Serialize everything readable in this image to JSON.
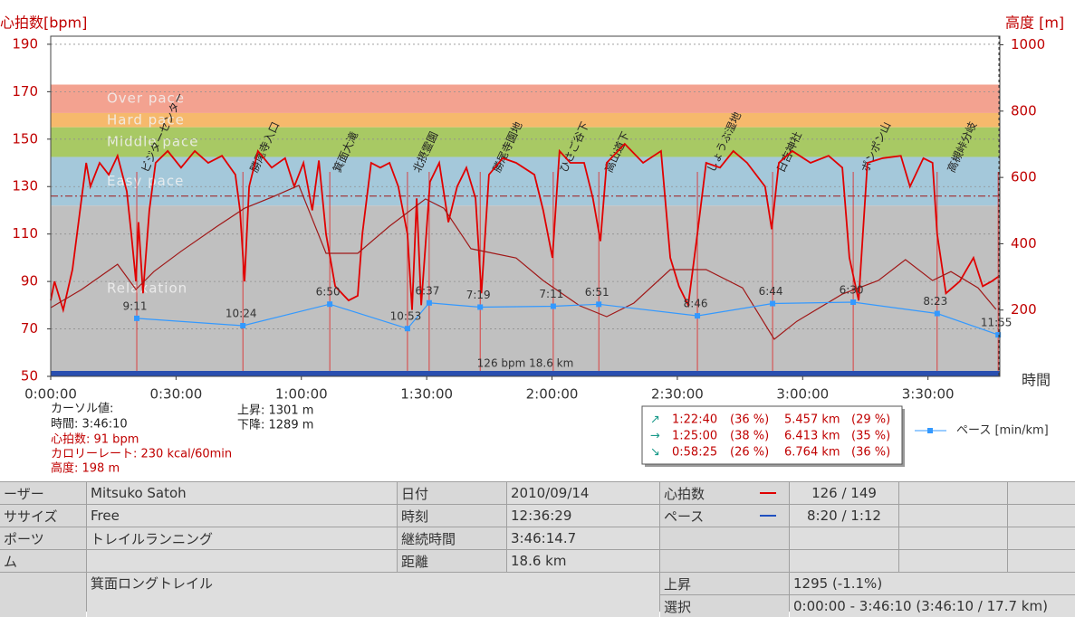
{
  "chart_data": {
    "type": "line",
    "y_label": "心拍数[bpm]",
    "y2_label": "高度 [m]",
    "x_label": "時間",
    "xlim": [
      0,
      227.2
    ],
    "xticks": [
      {
        "value": 0,
        "label": "0:00:00"
      },
      {
        "value": 30,
        "label": "0:30:00"
      },
      {
        "value": 60,
        "label": "1:00:00"
      },
      {
        "value": 90,
        "label": "1:30:00"
      },
      {
        "value": 120,
        "label": "2:00:00"
      },
      {
        "value": 150,
        "label": "2:30:00"
      },
      {
        "value": 180,
        "label": "3:00:00"
      },
      {
        "value": 210,
        "label": "3:30:00"
      }
    ],
    "ylim": [
      50,
      193.4
    ],
    "yticks": [
      50,
      70,
      90,
      110,
      130,
      150,
      170,
      190
    ],
    "y2lim": [
      0,
      1026
    ],
    "y2ticks": [
      200,
      400,
      600,
      800,
      1000
    ],
    "y3lim": [
      18.8,
      -37.6
    ],
    "grid": true,
    "zones": [
      {
        "name": "Over pace",
        "range": [
          161,
          173
        ],
        "color": "#f3a290"
      },
      {
        "name": "Hard pace",
        "range": [
          155,
          161
        ],
        "color": "#f6b96c"
      },
      {
        "name": "Middle pace",
        "range": [
          142.5,
          155
        ],
        "color": "#a8c964"
      },
      {
        "name": "Easy pace",
        "range": [
          122,
          142.5
        ],
        "color": "#a4c8da"
      },
      {
        "name": "Relaxation",
        "range": [
          52,
          122
        ],
        "color": "#c0c0c0"
      }
    ],
    "average_line": 126,
    "center_label": "126 bpm 18.6 km",
    "series": [
      {
        "color": "#e00000",
        "axis": "y",
        "x": [
          0,
          0.9,
          3.0,
          5.2,
          7.4,
          8.5,
          9.5,
          11.7,
          13.9,
          16.0,
          18.2,
          19.3,
          20.4,
          21.0,
          22.1,
          23.6,
          25.1,
          28.0,
          31.2,
          34.5,
          37.7,
          41.0,
          44.2,
          45.3,
          46.4,
          47.5,
          49.6,
          52.9,
          56.1,
          58.3,
          60.5,
          62.6,
          64.2,
          65.9,
          68.1,
          71.3,
          73.5,
          74.6,
          76.7,
          78.9,
          81.1,
          83.2,
          85.4,
          86.5,
          87.6,
          88.7,
          90.8,
          93.0,
          95.2,
          97.3,
          99.5,
          101.7,
          103.1,
          104.9,
          108.2,
          111.4,
          115.8,
          117.9,
          120.1,
          121.8,
          124.4,
          127.7,
          129.8,
          131.6,
          133.1,
          137.4,
          141.8,
          146.1,
          148.3,
          150.4,
          152.6,
          154.8,
          156.9,
          160.2,
          163.4,
          166.7,
          171.0,
          172.6,
          174.3,
          177.5,
          181.9,
          186.2,
          189.5,
          191.2,
          193.4,
          195.5,
          199.2,
          203.5,
          205.7,
          208.9,
          211.1,
          212.2,
          214.3,
          217.6,
          220.9,
          223.1,
          225.2,
          226.8
        ],
        "values": [
          82,
          90,
          78,
          95,
          125,
          140,
          130,
          140,
          135,
          143,
          128,
          110,
          90,
          115,
          85,
          120,
          140,
          145,
          138,
          145,
          140,
          143,
          135,
          120,
          90,
          130,
          145,
          138,
          142,
          130,
          140,
          120,
          141,
          110,
          88,
          82,
          84,
          110,
          140,
          138,
          140,
          130,
          110,
          78,
          125,
          80,
          132,
          140,
          115,
          130,
          138,
          125,
          85,
          135,
          142,
          140,
          135,
          120,
          100,
          145,
          140,
          140,
          125,
          107,
          140,
          148,
          140,
          145,
          100,
          88,
          80,
          110,
          140,
          138,
          145,
          140,
          130,
          112,
          140,
          145,
          140,
          143,
          138,
          100,
          82,
          140,
          142,
          143,
          130,
          142,
          140,
          110,
          85,
          90,
          100,
          88,
          90,
          92
        ]
      },
      {
        "color": "#a01818",
        "axis": "y2",
        "x": [
          0,
          7.4,
          16.0,
          20.4,
          24.7,
          31.2,
          39.9,
          46.4,
          52.9,
          59.4,
          65.9,
          73.5,
          81.1,
          89.7,
          94.1,
          100.6,
          111.4,
          117.9,
          126.6,
          133.1,
          139.6,
          148.3,
          156.9,
          165.6,
          173.2,
          178.6,
          189.5,
          198.1,
          204.6,
          211.1,
          215.5,
          222.0,
          226.3
        ],
        "values": [
          207,
          262,
          338,
          262,
          316,
          377,
          453,
          507,
          540,
          576,
          371,
          371,
          453,
          535,
          507,
          385,
          357,
          289,
          213,
          180,
          221,
          322,
          322,
          267,
          112,
          166,
          248,
          289,
          352,
          289,
          316,
          267,
          202
        ]
      },
      {
        "name": "ペース [min/km]",
        "color": "#3399ff",
        "axis": "y3",
        "x": [
          20.6,
          46.0,
          66.8,
          85.4,
          90.6,
          102.8,
          120.3,
          131.2,
          154.8,
          172.8,
          192.1,
          212.2,
          226.8
        ],
        "values": [
          9.18,
          10.4,
          6.83,
          10.88,
          6.62,
          7.32,
          7.18,
          6.85,
          8.77,
          6.73,
          6.5,
          8.38,
          11.92
        ],
        "value_labels": [
          "9:11",
          "10:24",
          "6:50",
          "10:53",
          "6:37",
          "7:19",
          "7:11",
          "6:51",
          "8:46",
          "6:44",
          "6:30",
          "8:23",
          "11:55"
        ]
      }
    ],
    "annotations": [
      {
        "text": "ビジターセンター",
        "x": 22.5
      },
      {
        "text": "勝尾寺入口",
        "x": 48.6
      },
      {
        "text": "箕面大滝",
        "x": 68.5
      },
      {
        "text": "北摂霊園",
        "x": 87.6
      },
      {
        "text": "勝尾寺園地",
        "x": 106.7
      },
      {
        "text": "ひさご谷下",
        "x": 122.7
      },
      {
        "text": "高山道下",
        "x": 133.5
      },
      {
        "text": "しょうぶ湿地",
        "x": 158
      },
      {
        "text": "日吉神社",
        "x": 174.7
      },
      {
        "text": "ポンポン山",
        "x": 194.9
      },
      {
        "text": "高槻峠分岐",
        "x": 215.5
      }
    ]
  },
  "cursor": {
    "lines": [
      "カーソル値:",
      "時間: 3:46:10",
      "心拍数: 91 bpm",
      "カロリーレート: 230 kcal/60min",
      "高度: 198 m"
    ],
    "ascent": "上昇: 1301 m",
    "descent": "下降: 1289 m"
  },
  "lap_summary": [
    {
      "time": "1:22:40",
      "time_pct": "(36 %)",
      "distance": "5.457 km",
      "distance_pct": "(29 %)"
    },
    {
      "time": "1:25:00",
      "time_pct": "(38 %)",
      "distance": "6.413 km",
      "distance_pct": "(35 %)"
    },
    {
      "time": "0:58:25",
      "time_pct": "(26 %)",
      "distance": "6.764 km",
      "distance_pct": "(36 %)"
    }
  ],
  "table": {
    "rows": [
      [
        "ーザー",
        "Mitsuko Satoh",
        "日付",
        "2010/09/14",
        "心拍数",
        "126 / 149"
      ],
      [
        "ササイズ",
        "Free",
        "時刻",
        "12:36:29",
        "ペース",
        "8:20 / 1:12"
      ],
      [
        "ポーツ",
        "トレイルランニング",
        "継続時間",
        "3:46:14.7"
      ],
      [
        "ム",
        "距離",
        "18.6 km"
      ],
      [
        "箕面ロングトレイル",
        "上昇",
        "1295 (-1.1%)"
      ],
      [
        "選択",
        "0:00:00 - 3:46:10 (3:46:10 / 17.7 km)"
      ]
    ]
  }
}
